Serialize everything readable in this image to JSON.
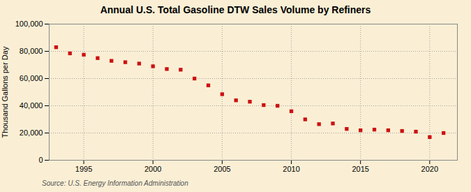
{
  "chart_data": {
    "type": "scatter",
    "title": "Annual U.S. Total Gasoline DTW Sales Volume by Refiners",
    "ylabel": "Thousand Gallons per Day",
    "annotations": [
      "Source: U.S. Energy Information Administration"
    ],
    "x": [
      1993,
      1994,
      1995,
      1996,
      1997,
      1998,
      1999,
      2000,
      2001,
      2002,
      2003,
      2004,
      2005,
      2006,
      2007,
      2008,
      2009,
      2010,
      2011,
      2012,
      2013,
      2014,
      2015,
      2016,
      2017,
      2018,
      2019,
      2020,
      2021
    ],
    "values": [
      83000,
      78500,
      77500,
      75000,
      73000,
      72000,
      71000,
      69000,
      67000,
      66500,
      60000,
      55000,
      48500,
      44000,
      43000,
      40500,
      40000,
      36000,
      30000,
      26500,
      27000,
      23000,
      22000,
      22500,
      22000,
      21500,
      21000,
      17000,
      20000
    ],
    "color": "#cc1111",
    "marker": "square",
    "xlim": [
      1992.5,
      2022
    ],
    "xticks": [
      1995,
      2000,
      2005,
      2010,
      2015,
      2020
    ],
    "ylim": [
      0,
      100000
    ],
    "yticks": [
      0,
      {
        "value": 20000,
        "label": "20,000"
      },
      {
        "value": 40000,
        "label": "40,000"
      },
      {
        "value": 60000,
        "label": "60,000"
      },
      {
        "value": 80000,
        "label": "80,000"
      },
      {
        "value": 100000,
        "label": "100,000"
      }
    ],
    "grid": true
  }
}
